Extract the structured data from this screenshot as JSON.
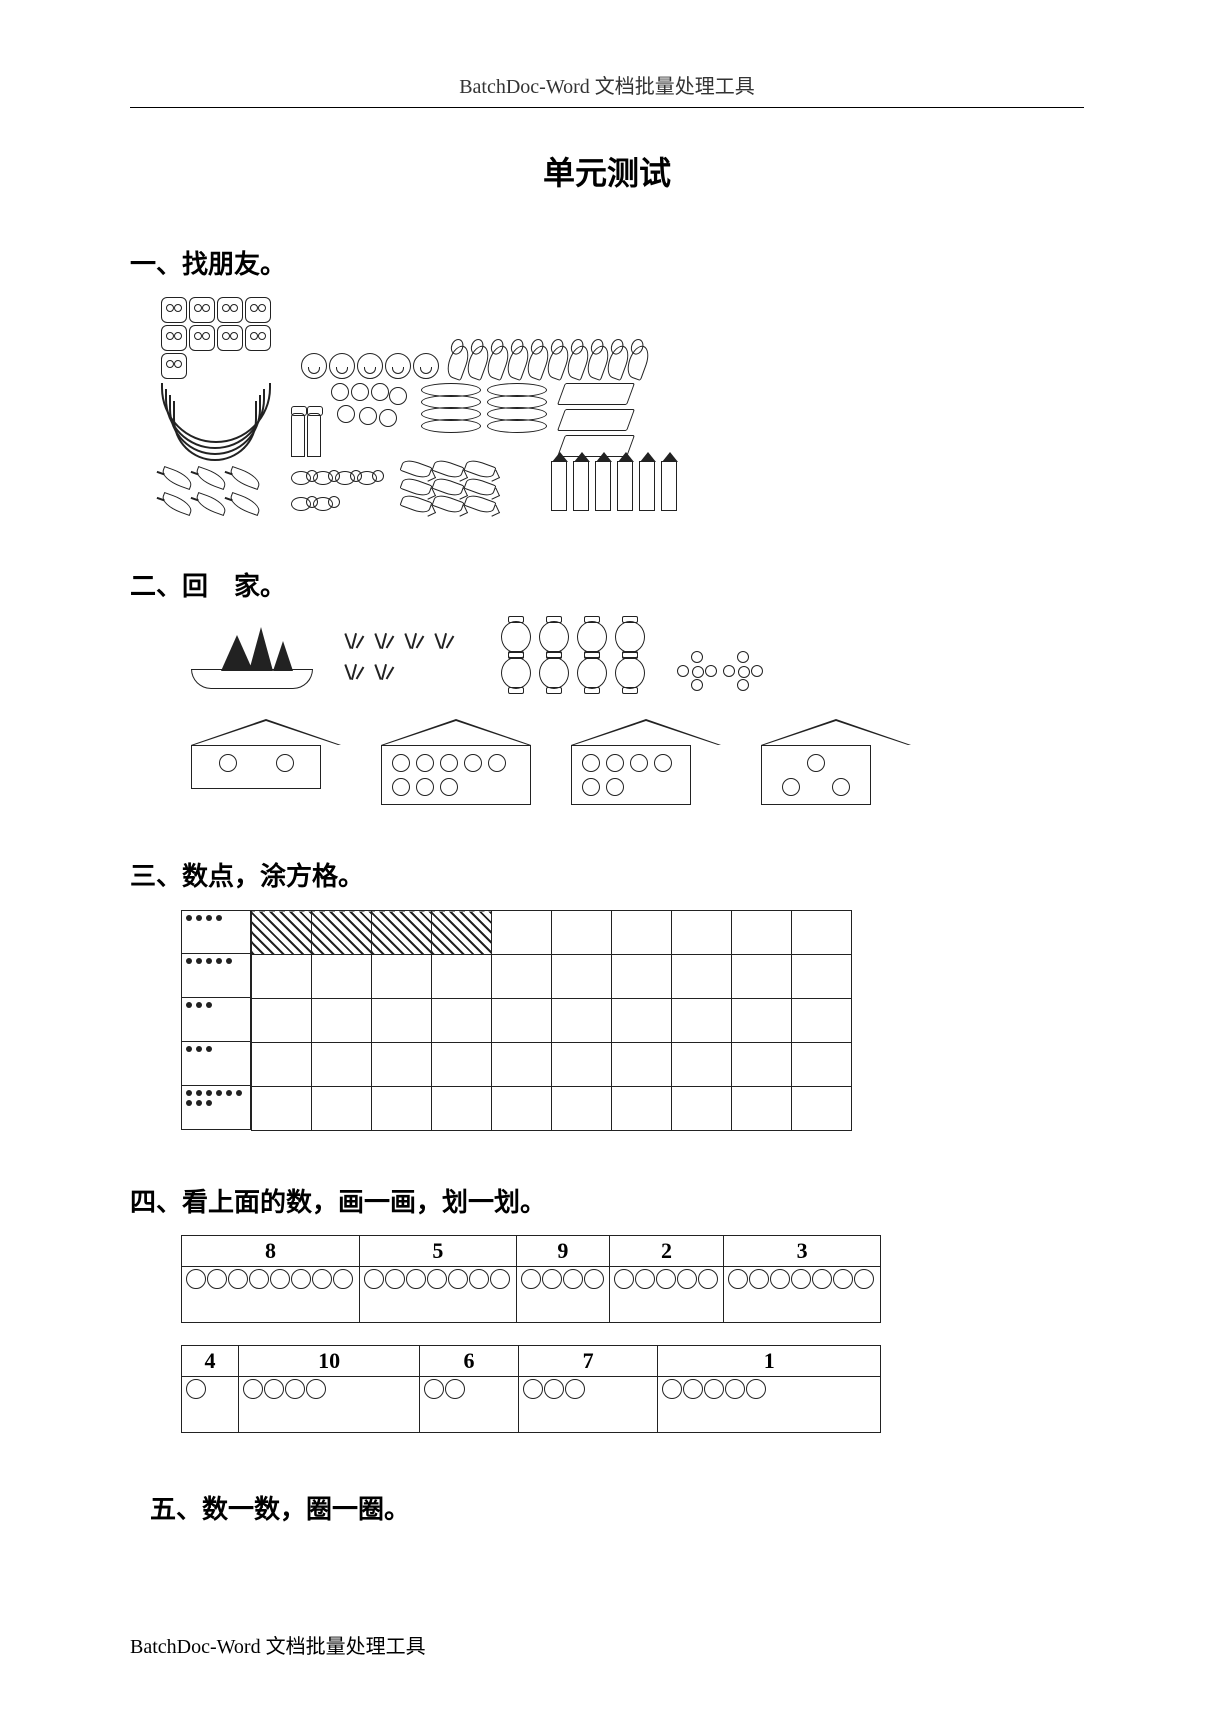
{
  "header": "BatchDoc-Word 文档批量处理工具",
  "title": "单元测试",
  "footer": "BatchDoc-Word 文档批量处理工具",
  "colors": {
    "ink": "#000000",
    "paper": "#ffffff",
    "grid": "#222222"
  },
  "sections": {
    "s1": {
      "heading": "一、找朋友。",
      "groups": [
        {
          "name": "cats",
          "count": 9,
          "shape": "cat"
        },
        {
          "name": "monkeys",
          "count": 5,
          "shape": "monkey"
        },
        {
          "name": "snakes",
          "count": 10,
          "shape": "snake"
        },
        {
          "name": "bananas",
          "count": 4,
          "shape": "banana"
        },
        {
          "name": "trophies",
          "count": 2,
          "shape": "cup"
        },
        {
          "name": "people",
          "count": 7,
          "shape": "person"
        },
        {
          "name": "plates",
          "count": 8,
          "shape": "plate"
        },
        {
          "name": "books",
          "count": 3,
          "shape": "book"
        },
        {
          "name": "leaves",
          "count": 6,
          "shape": "leaf"
        },
        {
          "name": "bees",
          "count": 6,
          "shape": "bee"
        },
        {
          "name": "fish",
          "count": 9,
          "shape": "fish"
        },
        {
          "name": "pencils",
          "count": 6,
          "shape": "pencil"
        }
      ]
    },
    "s2": {
      "heading": "二、回　家。",
      "topItems": [
        {
          "name": "sailboats",
          "count": 3
        },
        {
          "name": "grass-tufts",
          "count": 6
        },
        {
          "name": "lanterns",
          "count": 8
        },
        {
          "name": "flowers",
          "count": 2
        }
      ],
      "houses": [
        {
          "name": "house-2",
          "circles": 2,
          "layout": "row"
        },
        {
          "name": "house-8",
          "circles": 8,
          "layout": "grid4"
        },
        {
          "name": "house-6",
          "circles": 6,
          "layout": "grid3"
        },
        {
          "name": "house-3",
          "circles": 3,
          "layout": "tri"
        }
      ]
    },
    "s3": {
      "heading": "三、数点，涂方格。",
      "rows": [
        {
          "dots": 4,
          "shaded": 4,
          "cols": 10
        },
        {
          "dots": 5,
          "shaded": 0,
          "cols": 10
        },
        {
          "dots": 3,
          "shaded": 0,
          "cols": 10
        },
        {
          "dots": 3,
          "shaded": 0,
          "cols": 10
        },
        {
          "dots": 9,
          "shaded": 0,
          "cols": 10
        }
      ]
    },
    "s4": {
      "heading": "四、看上面的数，画一画，划一划。",
      "row1": [
        {
          "num": "8",
          "circles": 8
        },
        {
          "num": "5",
          "circles": 7
        },
        {
          "num": "9",
          "circles": 4
        },
        {
          "num": "2",
          "circles": 5
        },
        {
          "num": "3",
          "circles": 7
        }
      ],
      "row2": [
        {
          "num": "4",
          "circles": 1
        },
        {
          "num": "10",
          "circles": 4
        },
        {
          "num": "6",
          "circles": 2
        },
        {
          "num": "7",
          "circles": 3
        },
        {
          "num": "1",
          "circles": 5
        }
      ]
    },
    "s5": {
      "heading": "五、数一数，圈一圈。"
    }
  }
}
